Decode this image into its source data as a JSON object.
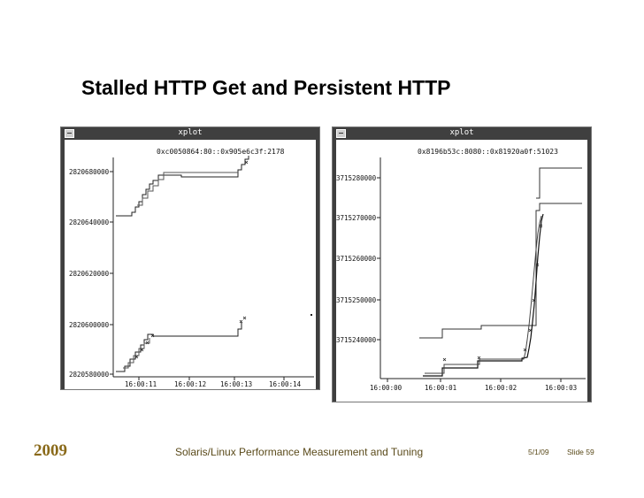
{
  "slide": {
    "title": "Stalled HTTP Get and Persistent HTTP",
    "year": "2009",
    "subtitle": "Solaris/Linux Performance Measurement and Tuning",
    "date": "5/1/09",
    "slide_number": "Slide 59"
  },
  "windows": {
    "left": {
      "title": "xplot",
      "connection": "0xc0050864:80::0x905e6c3f:2178",
      "y_ticks": [
        "2820680000",
        "2820640000",
        "2820620000",
        "2820600000",
        "2820580000"
      ],
      "x_ticks": [
        "16:00:11",
        "16:00:12",
        "16:00:13",
        "16:00:14"
      ]
    },
    "right": {
      "title": "xplot",
      "connection": "0x8196b53c:8080::0x81920a0f:51023",
      "y_ticks": [
        "3715280000",
        "3715270000",
        "3715260000",
        "3715250000",
        "3715240000"
      ],
      "x_ticks": [
        "16:00:00",
        "16:00:01",
        "16:00:02",
        "16:00:03"
      ]
    }
  },
  "icons": {
    "window_menu": "window-menu-icon"
  }
}
